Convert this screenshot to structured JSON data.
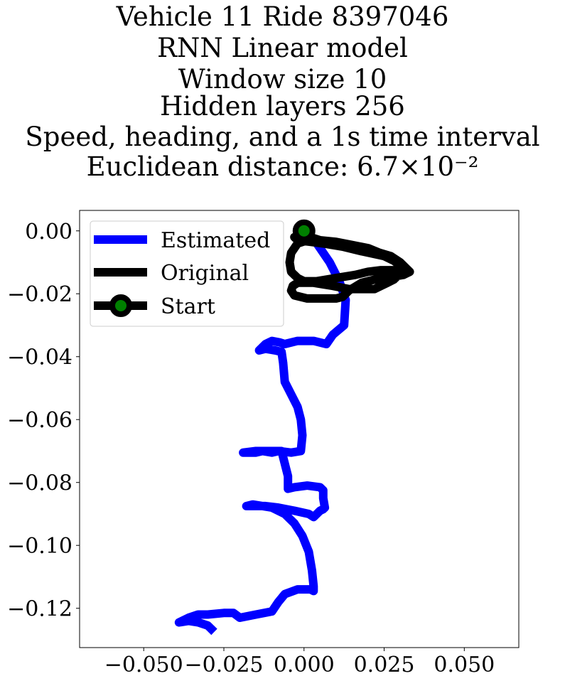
{
  "title_lines": [
    "Vehicle 11 Ride 8397046",
    "RNN Linear model",
    "Window size 10",
    "Hidden layers 256",
    "Speed, heading, and a 1s time interval",
    "Euclidean distance: 6.7×10⁻²"
  ],
  "chart_data": {
    "type": "line",
    "xlim": [
      -0.07,
      0.067
    ],
    "ylim": [
      -0.1325,
      0.0065
    ],
    "xticks": [
      -0.05,
      -0.025,
      0.0,
      0.025,
      0.05
    ],
    "xtick_labels": [
      "−0.050",
      "−0.025",
      "0.000",
      "0.025",
      "0.050"
    ],
    "yticks": [
      0.0,
      -0.02,
      -0.04,
      -0.06,
      -0.08,
      -0.1,
      -0.12
    ],
    "ytick_labels": [
      "0.00",
      "−0.02",
      "−0.04",
      "−0.06",
      "−0.08",
      "−0.10",
      "−0.12"
    ],
    "grid": false,
    "legend_placement": "upper-left",
    "series": [
      {
        "name": "Estimated",
        "color": "#0000ff",
        "points": [
          [
            0.0,
            0.0
          ],
          [
            0.004,
            -0.004
          ],
          [
            0.008,
            -0.01
          ],
          [
            0.011,
            -0.016
          ],
          [
            0.013,
            -0.022
          ],
          [
            0.0125,
            -0.03
          ],
          [
            0.009,
            -0.033
          ],
          [
            0.007,
            -0.036
          ],
          [
            0.003,
            -0.035
          ],
          [
            -0.002,
            -0.035
          ],
          [
            -0.006,
            -0.036
          ],
          [
            -0.0075,
            -0.0355
          ],
          [
            -0.01,
            -0.035
          ],
          [
            -0.012,
            -0.036
          ],
          [
            -0.014,
            -0.038
          ],
          [
            -0.012,
            -0.0375
          ],
          [
            -0.009,
            -0.038
          ],
          [
            -0.007,
            -0.0385
          ],
          [
            -0.0065,
            -0.042
          ],
          [
            -0.006,
            -0.048
          ],
          [
            -0.004,
            -0.052
          ],
          [
            -0.002,
            -0.056
          ],
          [
            -0.001,
            -0.06
          ],
          [
            -0.0005,
            -0.065
          ],
          [
            -0.001,
            -0.07
          ],
          [
            -0.004,
            -0.0705
          ],
          [
            -0.008,
            -0.07
          ],
          [
            -0.01,
            -0.0705
          ],
          [
            -0.013,
            -0.07
          ],
          [
            -0.015,
            -0.0705
          ],
          [
            -0.019,
            -0.0705
          ],
          [
            -0.015,
            -0.07
          ],
          [
            -0.007,
            -0.07
          ],
          [
            -0.006,
            -0.074
          ],
          [
            -0.005,
            -0.078
          ],
          [
            -0.005,
            -0.082
          ],
          [
            -0.003,
            -0.0815
          ],
          [
            0.001,
            -0.081
          ],
          [
            0.005,
            -0.0815
          ],
          [
            0.006,
            -0.0825
          ],
          [
            0.006,
            -0.085
          ],
          [
            0.0065,
            -0.088
          ],
          [
            0.006,
            -0.0885
          ],
          [
            0.005,
            -0.089
          ],
          [
            0.003,
            -0.091
          ],
          [
            0.0015,
            -0.09
          ],
          [
            -0.003,
            -0.089
          ],
          [
            -0.008,
            -0.088
          ],
          [
            -0.012,
            -0.0875
          ],
          [
            -0.016,
            -0.0875
          ],
          [
            -0.018,
            -0.0875
          ],
          [
            -0.016,
            -0.087
          ],
          [
            -0.01,
            -0.088
          ],
          [
            -0.006,
            -0.09
          ],
          [
            -0.003,
            -0.093
          ],
          [
            -0.0005,
            -0.097
          ],
          [
            0.0015,
            -0.102
          ],
          [
            0.0025,
            -0.108
          ],
          [
            0.003,
            -0.113
          ],
          [
            0.003,
            -0.1145
          ],
          [
            0.002,
            -0.114
          ],
          [
            -0.002,
            -0.114
          ],
          [
            -0.006,
            -0.1155
          ],
          [
            -0.008,
            -0.118
          ],
          [
            -0.01,
            -0.121
          ],
          [
            -0.015,
            -0.122
          ],
          [
            -0.02,
            -0.123
          ],
          [
            -0.022,
            -0.1215
          ],
          [
            -0.025,
            -0.1215
          ],
          [
            -0.03,
            -0.122
          ],
          [
            -0.033,
            -0.122
          ],
          [
            -0.036,
            -0.123
          ],
          [
            -0.039,
            -0.1245
          ],
          [
            -0.036,
            -0.124
          ],
          [
            -0.033,
            -0.1245
          ],
          [
            -0.03,
            -0.1255
          ],
          [
            -0.028,
            -0.1275
          ]
        ]
      },
      {
        "name": "Original",
        "color": "#000000",
        "points": [
          [
            0.0,
            0.0
          ],
          [
            0.002,
            -0.002
          ],
          [
            0.005,
            -0.003
          ],
          [
            0.01,
            -0.004
          ],
          [
            0.016,
            -0.005
          ],
          [
            0.022,
            -0.0065
          ],
          [
            0.027,
            -0.008
          ],
          [
            0.03,
            -0.01
          ],
          [
            0.032,
            -0.012
          ],
          [
            0.033,
            -0.013
          ],
          [
            0.031,
            -0.014
          ],
          [
            0.028,
            -0.0145
          ],
          [
            0.022,
            -0.0155
          ],
          [
            0.018,
            -0.0165
          ],
          [
            0.014,
            -0.019
          ],
          [
            0.012,
            -0.021
          ],
          [
            0.01,
            -0.0215
          ],
          [
            0.006,
            -0.0215
          ],
          [
            0.001,
            -0.0215
          ],
          [
            -0.003,
            -0.0205
          ],
          [
            -0.004,
            -0.019
          ],
          [
            -0.0035,
            -0.0175
          ],
          [
            -0.002,
            -0.0165
          ],
          [
            0.003,
            -0.0165
          ],
          [
            0.009,
            -0.0175
          ],
          [
            0.014,
            -0.0185
          ],
          [
            0.019,
            -0.0185
          ],
          [
            0.022,
            -0.0185
          ],
          [
            0.024,
            -0.0175
          ],
          [
            0.026,
            -0.0165
          ],
          [
            0.028,
            -0.0155
          ],
          [
            0.029,
            -0.0145
          ],
          [
            0.031,
            -0.0135
          ],
          [
            0.03,
            -0.011
          ],
          [
            0.026,
            -0.008
          ],
          [
            0.02,
            -0.0055
          ],
          [
            0.015,
            -0.0045
          ],
          [
            0.01,
            -0.0035
          ],
          [
            0.005,
            -0.003
          ],
          [
            0.001,
            -0.003
          ],
          [
            -0.002,
            -0.004
          ],
          [
            -0.004,
            -0.007
          ],
          [
            -0.0045,
            -0.01
          ],
          [
            -0.004,
            -0.013
          ],
          [
            -0.002,
            -0.015
          ],
          [
            0.0,
            -0.016
          ],
          [
            0.004,
            -0.016
          ],
          [
            0.01,
            -0.015
          ],
          [
            0.016,
            -0.014
          ],
          [
            0.02,
            -0.013
          ],
          [
            0.024,
            -0.0125
          ],
          [
            0.029,
            -0.0125
          ],
          [
            0.032,
            -0.0125
          ],
          [
            0.03,
            -0.0105
          ],
          [
            0.025,
            -0.008
          ],
          [
            0.018,
            -0.0065
          ],
          [
            0.012,
            -0.005
          ],
          [
            0.006,
            -0.004
          ],
          [
            0.002,
            -0.0035
          ],
          [
            -0.002,
            -0.003
          ],
          [
            -0.003,
            -0.002
          ],
          [
            -0.001,
            -0.001
          ],
          [
            0.0,
            0.0
          ]
        ]
      }
    ],
    "legend_entries": [
      "Estimated",
      "Original",
      "Start"
    ],
    "start_marker": {
      "x": 0.0,
      "y": 0.0,
      "face_color": "#008000",
      "edge_color": "#000000"
    }
  }
}
